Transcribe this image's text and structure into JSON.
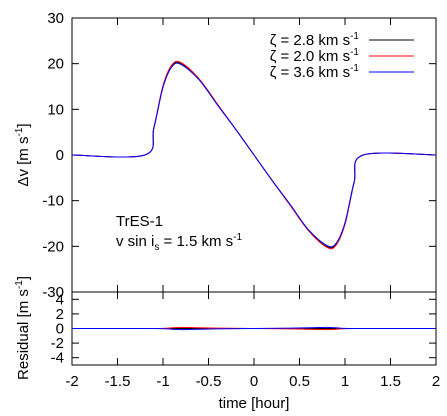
{
  "chart_data": [
    {
      "type": "line",
      "ylabel_main": "Δv",
      "ylabel_unit_base": "[m s",
      "ylabel_unit_exp": "-1",
      "ylabel_unit_close": "]",
      "xlim": [
        -2,
        2
      ],
      "ylim": [
        -30,
        30
      ],
      "y_ticks": [
        "30",
        "20",
        "10",
        "0",
        "-10",
        "-20",
        "-30"
      ],
      "y_tick_values": [
        30,
        20,
        10,
        0,
        -10,
        -20,
        -30
      ],
      "annotation": {
        "line1": "TrES-1",
        "line2_a": "v sin i",
        "line2_sub": "s",
        "line2_b": " = 1.5 km s",
        "line2_sup": "-1"
      },
      "series": [
        {
          "name_sym": "ζ",
          "name_val": " = 2.8 km s",
          "name_exp": "-1",
          "color": "#000000",
          "x": [
            -2.0,
            -1.2,
            -1.1,
            -1.0,
            -0.9,
            -0.8,
            -0.6,
            -0.4,
            -0.2,
            0.0,
            0.2,
            0.4,
            0.6,
            0.8,
            0.9,
            1.0,
            1.1,
            1.2,
            2.0
          ],
          "y": [
            0,
            0,
            6,
            15,
            19.6,
            20,
            16.5,
            11,
            5.6,
            0,
            -5.6,
            -11,
            -16.5,
            -20,
            -19.6,
            -15,
            -6,
            0,
            0
          ]
        },
        {
          "name_sym": "ζ",
          "name_val": " = 2.0 km s",
          "name_exp": "-1",
          "color": "#ff0000",
          "x": [
            -2.0,
            -1.2,
            -1.1,
            -1.0,
            -0.9,
            -0.8,
            -0.6,
            -0.4,
            -0.2,
            0.0,
            0.2,
            0.4,
            0.6,
            0.8,
            0.9,
            1.0,
            1.1,
            1.2,
            2.0
          ],
          "y": [
            0,
            0,
            6.1,
            15.2,
            19.8,
            20.2,
            16.6,
            11.1,
            5.6,
            0,
            -5.6,
            -11.1,
            -16.6,
            -20.2,
            -19.8,
            -15.2,
            -6.1,
            0,
            0
          ]
        },
        {
          "name_sym": "ζ",
          "name_val": " = 3.6 km s",
          "name_exp": "-1",
          "color": "#0000ff",
          "x": [
            -2.0,
            -1.2,
            -1.1,
            -1.0,
            -0.9,
            -0.8,
            -0.6,
            -0.4,
            -0.2,
            0.0,
            0.2,
            0.4,
            0.6,
            0.8,
            0.9,
            1.0,
            1.1,
            1.2,
            2.0
          ],
          "y": [
            0,
            0,
            5.9,
            14.8,
            19.4,
            19.8,
            16.4,
            10.9,
            5.6,
            0,
            -5.6,
            -10.9,
            -16.4,
            -19.8,
            -19.4,
            -14.8,
            -5.9,
            0,
            0
          ]
        }
      ]
    },
    {
      "type": "line",
      "xlabel": "time [hour]",
      "ylabel_main": "Residual",
      "ylabel_unit_base": "[m s",
      "ylabel_unit_exp": "-1",
      "ylabel_unit_close": "]",
      "xlim": [
        -2,
        2
      ],
      "ylim": [
        -5,
        5
      ],
      "x_ticks": [
        "-2",
        "-1.5",
        "-1",
        "-0.5",
        "0",
        "0.5",
        "1",
        "1.5",
        "2"
      ],
      "x_tick_values": [
        -2,
        -1.5,
        -1,
        -0.5,
        0,
        0.5,
        1,
        1.5,
        2
      ],
      "y_ticks": [
        "4",
        "2",
        "0",
        "-2",
        "-4"
      ],
      "y_tick_values": [
        4,
        2,
        0,
        -2,
        -4
      ],
      "series": [
        {
          "color": "#000000",
          "x": [
            -2.0,
            2.0
          ],
          "y": [
            0,
            0
          ]
        },
        {
          "color": "#ff0000",
          "x": [
            -2.0,
            -1.1,
            -0.9,
            -0.8,
            -0.6,
            -0.4,
            0.0,
            0.4,
            0.6,
            0.8,
            0.9,
            1.1,
            2.0
          ],
          "y": [
            0,
            0,
            0.1,
            0.15,
            0.1,
            0.05,
            0,
            -0.05,
            -0.1,
            -0.15,
            -0.1,
            0,
            0
          ]
        },
        {
          "color": "#0000ff",
          "x": [
            -2.0,
            -1.1,
            -0.9,
            -0.8,
            -0.6,
            -0.4,
            0.0,
            0.4,
            0.6,
            0.8,
            0.9,
            1.1,
            2.0
          ],
          "y": [
            0,
            0,
            -0.1,
            -0.15,
            -0.1,
            -0.05,
            0,
            0.05,
            0.1,
            0.15,
            0.1,
            0,
            0
          ]
        }
      ]
    }
  ]
}
